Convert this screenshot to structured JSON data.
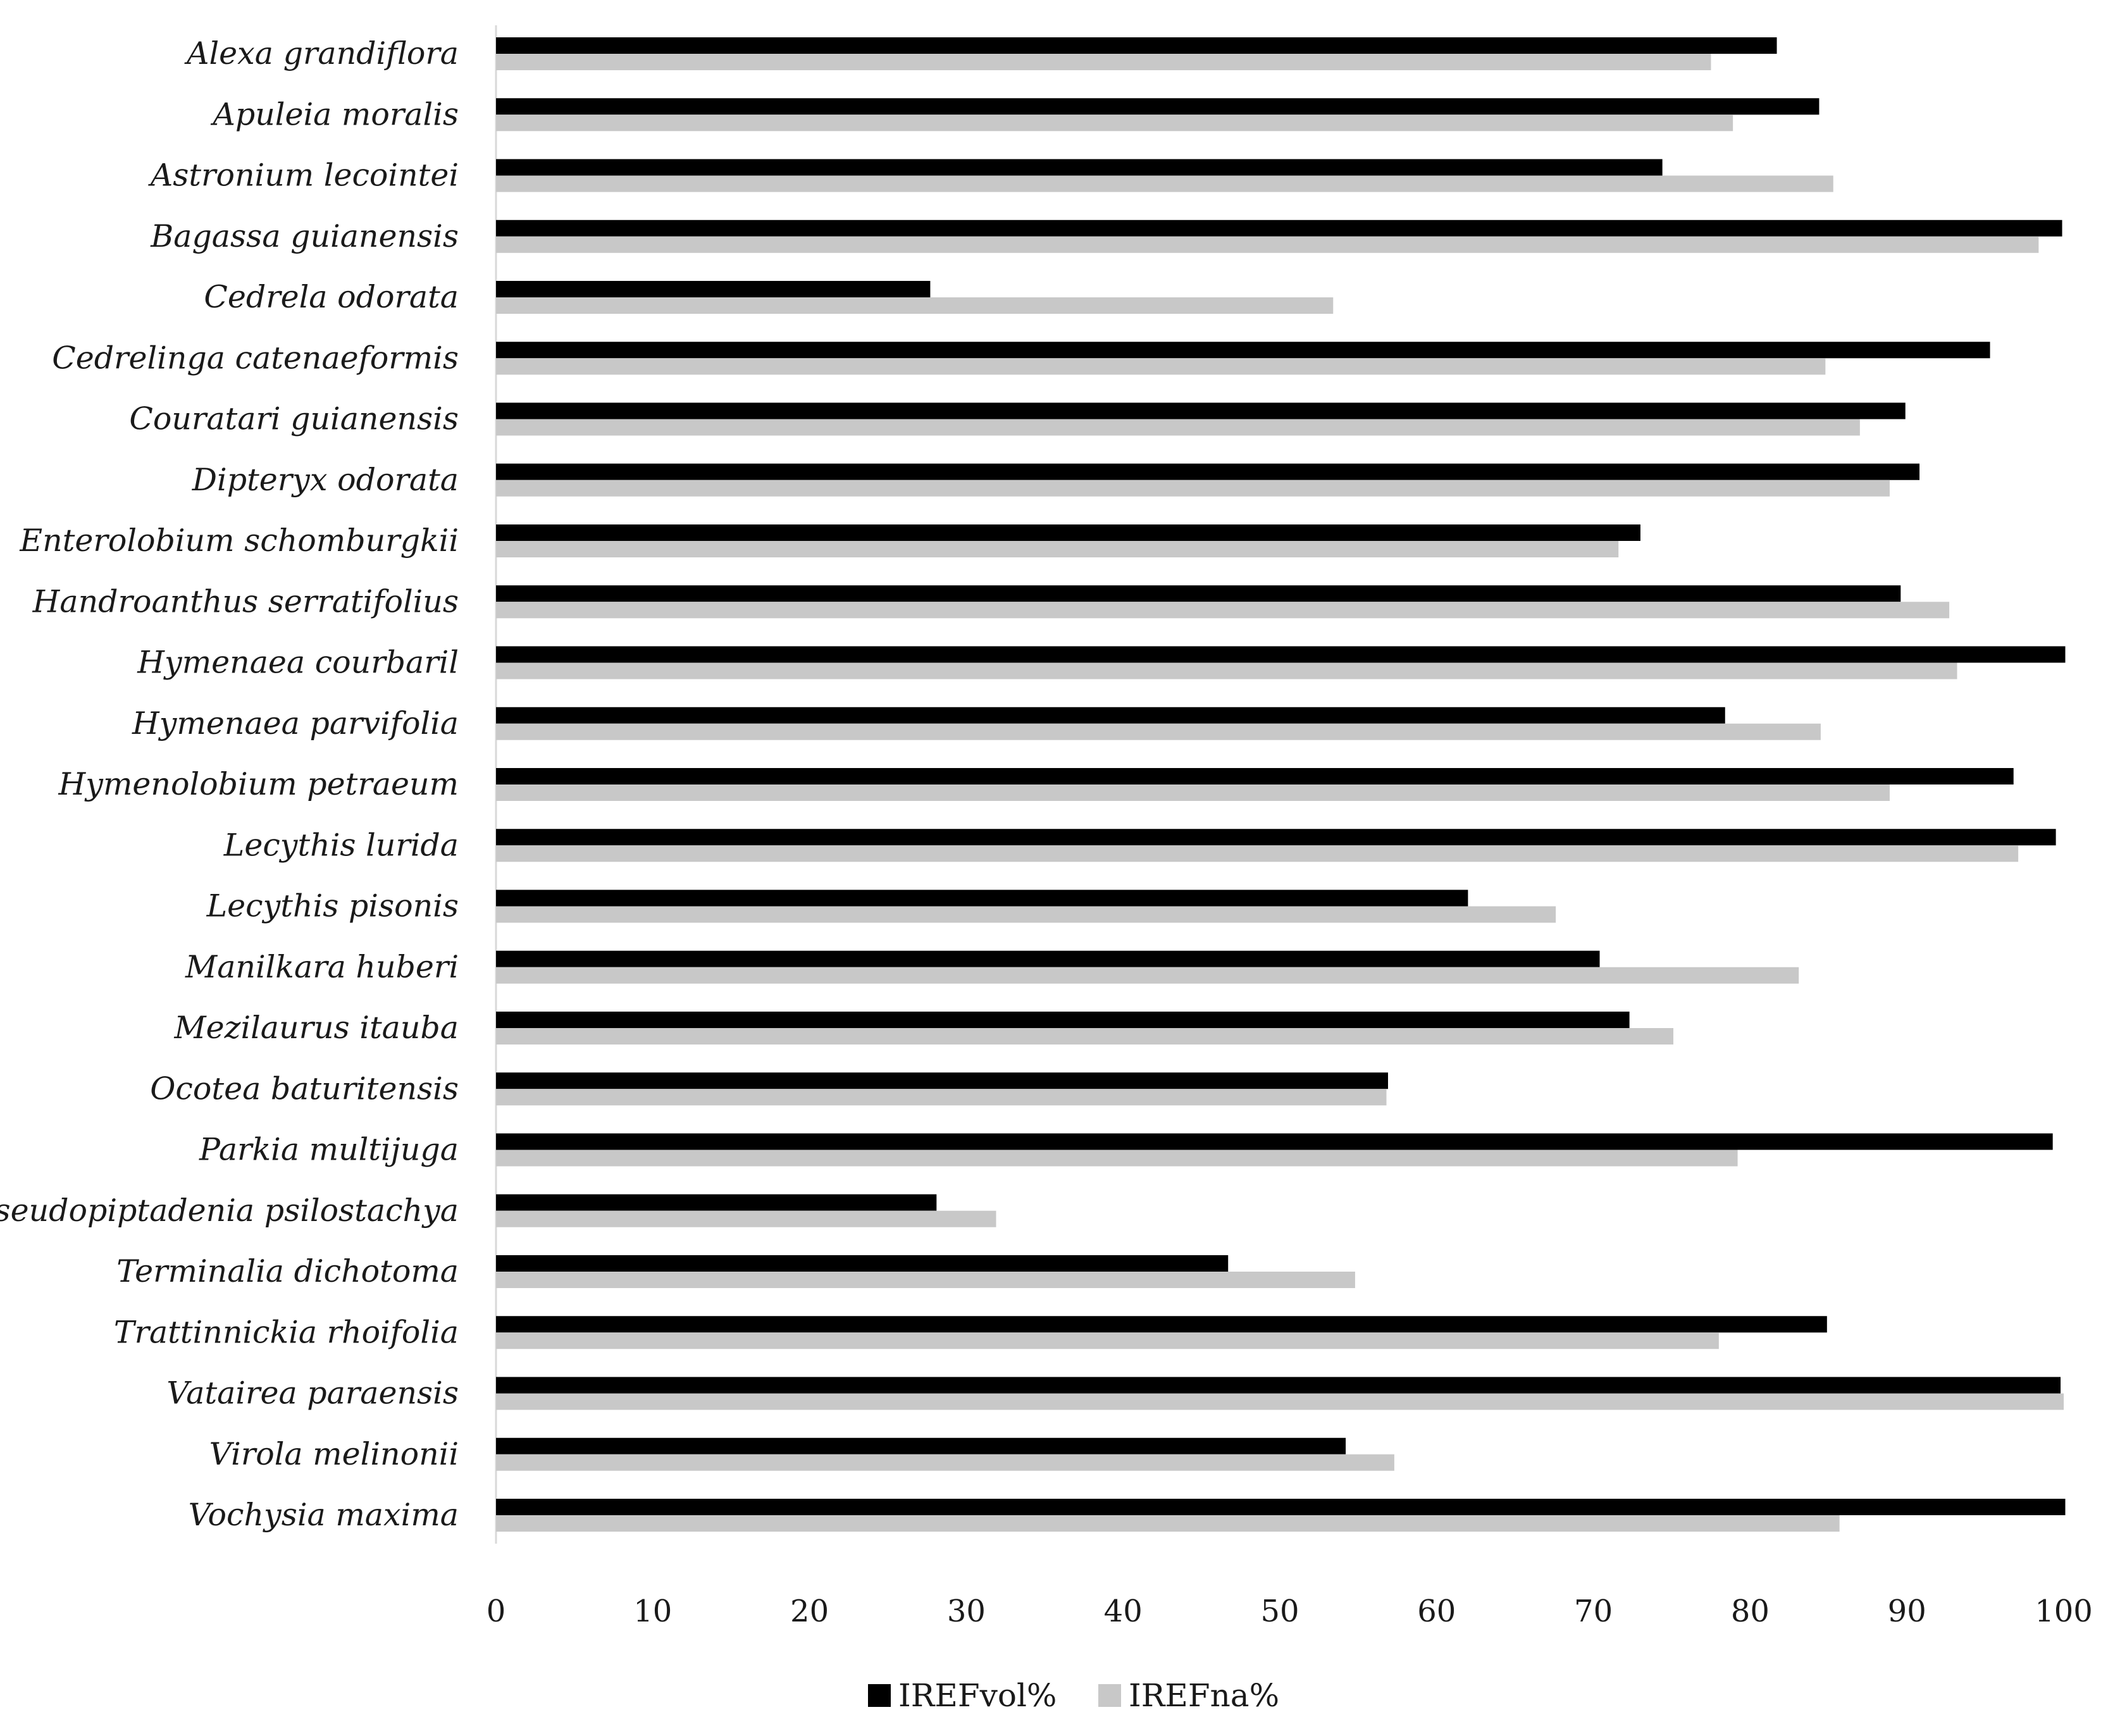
{
  "chart_data": {
    "type": "bar",
    "orientation": "horizontal",
    "categories": [
      "Alexa grandiflora",
      "Apuleia moralis",
      "Astronium lecointei",
      "Bagassa guianensis",
      "Cedrela odorata",
      "Cedrelinga catenaeformis",
      "Couratari guianensis",
      "Dipteryx odorata",
      "Enterolobium schomburgkii",
      "Handroanthus serratifolius",
      "Hymenaea courbaril",
      "Hymenaea parvifolia",
      "Hymenolobium petraeum",
      "Lecythis lurida",
      "Lecythis pisonis",
      "Manilkara huberi",
      "Mezilaurus itauba",
      "Ocotea baturitensis",
      "Parkia multijuga",
      "Pseudopiptadenia psilostachya",
      "Terminalia dichotoma",
      "Trattinnickia rhoifolia",
      "Vatairea paraensis",
      "Virola melinonii",
      "Vochysia maxima"
    ],
    "series": [
      {
        "name": "IREFvol%",
        "color": "#000000",
        "values": [
          81.7,
          84.4,
          74.4,
          99.9,
          27.7,
          95.3,
          89.9,
          90.8,
          73.0,
          89.6,
          100.1,
          78.4,
          96.8,
          99.5,
          62.0,
          70.4,
          72.3,
          56.9,
          99.3,
          28.1,
          46.7,
          84.9,
          99.8,
          54.2,
          100.1
        ]
      },
      {
        "name": "IREFna%",
        "color": "#c8c8c8",
        "values": [
          77.5,
          78.9,
          85.3,
          98.4,
          53.4,
          84.8,
          87.0,
          88.9,
          71.6,
          92.7,
          93.2,
          84.5,
          88.9,
          97.1,
          67.6,
          83.1,
          75.1,
          56.8,
          79.2,
          31.9,
          54.8,
          78.0,
          100.0,
          57.3,
          85.7
        ]
      }
    ],
    "x_ticks": [
      "0",
      "10",
      "20",
      "30",
      "40",
      "50",
      "60",
      "70",
      "80",
      "90",
      "100"
    ],
    "xlim": [
      0,
      100
    ],
    "title": "",
    "xlabel": "",
    "ylabel": "",
    "grid": false,
    "legend_position": "bottom-center"
  }
}
